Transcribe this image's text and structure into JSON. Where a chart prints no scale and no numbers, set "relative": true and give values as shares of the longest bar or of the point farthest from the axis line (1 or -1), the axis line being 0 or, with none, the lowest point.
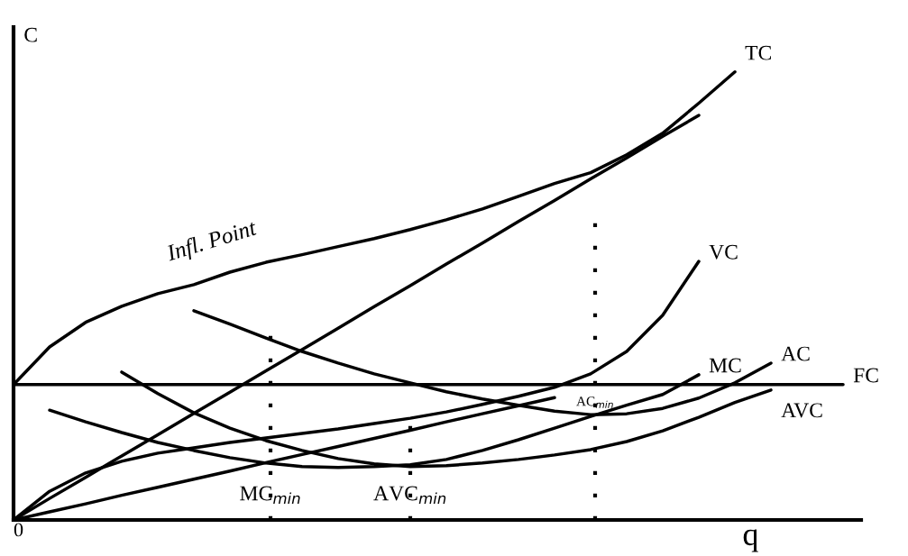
{
  "chart_data": {
    "type": "line",
    "relative": true,
    "xlabel": "q",
    "ylabel": "C",
    "legend": false,
    "marker": "none",
    "line_style": "solid",
    "categories": [
      null,
      null,
      null,
      null,
      null,
      null,
      null,
      null,
      null,
      null,
      null,
      null,
      null,
      null,
      null,
      null,
      null,
      null,
      null,
      null,
      null,
      null,
      null,
      null
    ],
    "series": [
      {
        "name": "TC",
        "color": "#000000",
        "values": [
          0.302,
          0.386,
          0.441,
          0.477,
          0.505,
          0.525,
          0.553,
          0.575,
          0.592,
          0.61,
          0.628,
          0.648,
          0.67,
          0.694,
          0.722,
          0.751,
          0.775,
          0.815,
          0.863,
          0.93,
          1,
          null,
          null,
          null
        ]
      },
      {
        "name": "VC",
        "color": "#000000",
        "values": [
          0,
          0.064,
          0.105,
          0.131,
          0.149,
          0.161,
          0.173,
          0.183,
          0.193,
          0.203,
          0.215,
          0.227,
          0.241,
          0.258,
          0.276,
          0.296,
          0.326,
          0.376,
          0.457,
          0.577,
          null,
          null,
          null,
          null
        ]
      },
      {
        "name": "FC",
        "color": "#000000",
        "values": [
          0.302,
          0.302,
          0.302,
          0.302,
          0.302,
          0.302,
          0.302,
          0.302,
          0.302,
          0.302,
          0.302,
          0.302,
          0.302,
          0.302,
          0.302,
          0.302,
          0.302,
          0.302,
          0.302,
          0.302,
          0.302,
          0.302,
          0.302,
          0.302
        ]
      },
      {
        "color": "#000000",
        "values": [
          0,
          0.048,
          0.095,
          0.143,
          0.19,
          0.238,
          0.285,
          0.333,
          0.38,
          0.428,
          0.476,
          0.523,
          0.571,
          0.618,
          0.666,
          0.713,
          0.761,
          0.808,
          0.856,
          0.903,
          null,
          null,
          null,
          null
        ]
      },
      {
        "color": "#000000",
        "values": [
          0,
          0.018,
          0.036,
          0.055,
          0.073,
          0.091,
          0.109,
          0.128,
          0.146,
          0.164,
          0.182,
          0.2,
          0.219,
          0.237,
          0.255,
          0.273,
          null,
          null,
          null,
          null,
          null,
          null,
          null,
          null
        ]
      },
      {
        "name": "MC",
        "color": "#000000",
        "values": [
          null,
          0.245,
          0.219,
          0.195,
          0.173,
          0.155,
          0.139,
          0.127,
          0.119,
          0.117,
          0.119,
          0.123,
          0.135,
          0.155,
          0.179,
          0.205,
          0.231,
          0.256,
          0.28,
          0.324,
          null,
          null,
          null,
          null
        ]
      },
      {
        "name": "AVC",
        "color": "#000000",
        "values": [
          null,
          null,
          null,
          0.33,
          0.282,
          0.239,
          0.205,
          0.177,
          0.155,
          0.137,
          0.125,
          0.119,
          0.121,
          0.127,
          0.135,
          0.145,
          0.157,
          0.175,
          0.199,
          0.229,
          0.262,
          0.29,
          null,
          null
        ]
      },
      {
        "name": "AC",
        "color": "#000000",
        "values": [
          null,
          null,
          null,
          null,
          null,
          0.467,
          0.437,
          0.406,
          0.376,
          0.35,
          0.326,
          0.306,
          0.286,
          0.27,
          0.256,
          0.243,
          0.235,
          0.237,
          0.249,
          0.272,
          0.306,
          0.35,
          null,
          null
        ]
      }
    ],
    "annotations": [
      "0",
      "Infl. Point",
      "MC$_{min}$",
      "AVC$_{min}$",
      "AC$_{min}$"
    ]
  }
}
